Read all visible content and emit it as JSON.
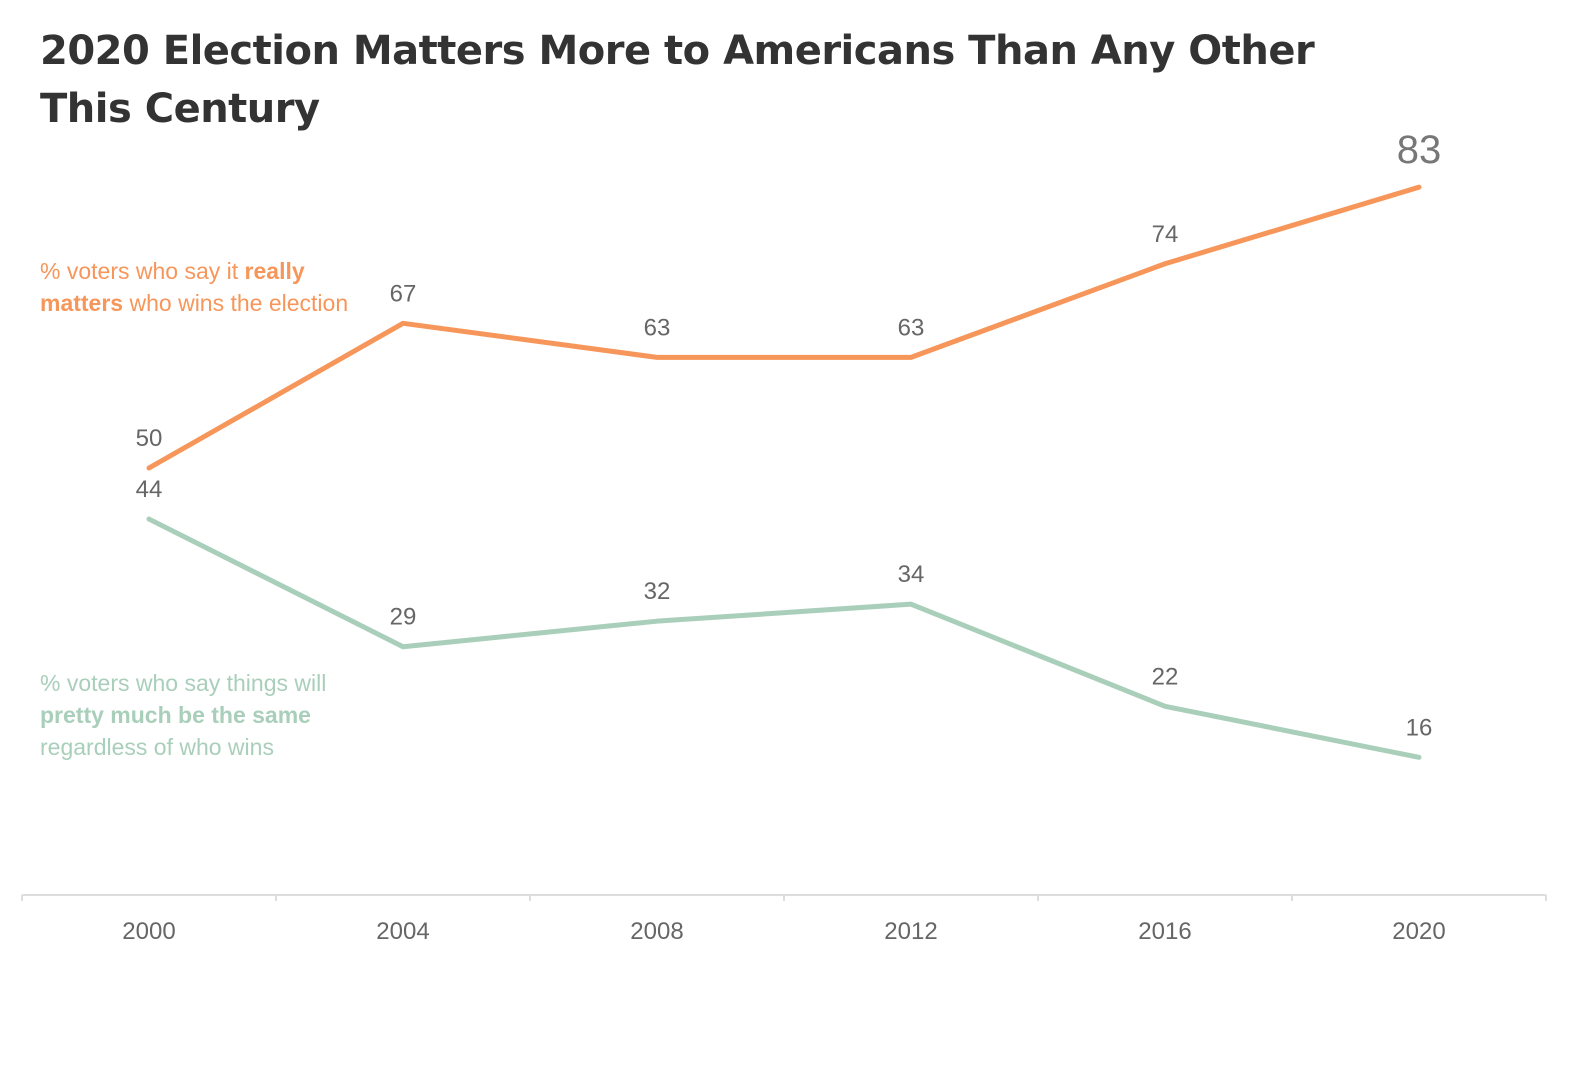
{
  "title": "2020 Election Matters More to Americans Than Any Other This Century",
  "series_labels": {
    "really_matters": {
      "pre": "% voters who say it ",
      "bold": "really matters",
      "post": " who wins the election"
    },
    "same": {
      "pre": "% voters who say things will ",
      "bold": "pretty much be the same",
      "post": " regardless of who wins"
    }
  },
  "colors": {
    "really_matters": "#f7965a",
    "same": "#a9cfba",
    "title": "#333333",
    "axis": "#dddddd"
  },
  "chart_data": {
    "type": "line",
    "x": [
      "2000",
      "2004",
      "2008",
      "2012",
      "2016",
      "2020"
    ],
    "series": [
      {
        "name": "% voters who say it really matters who wins the election",
        "values": [
          50,
          67,
          63,
          63,
          74,
          83
        ]
      },
      {
        "name": "% voters who say things will pretty much be the same regardless of who wins",
        "values": [
          44,
          29,
          32,
          34,
          22,
          16
        ]
      }
    ],
    "title": "2020 Election Matters More to Americans Than Any Other This Century",
    "xlabel": "",
    "ylabel": "",
    "grid": false,
    "y_axis_shown": false,
    "legend": "inline-left"
  }
}
